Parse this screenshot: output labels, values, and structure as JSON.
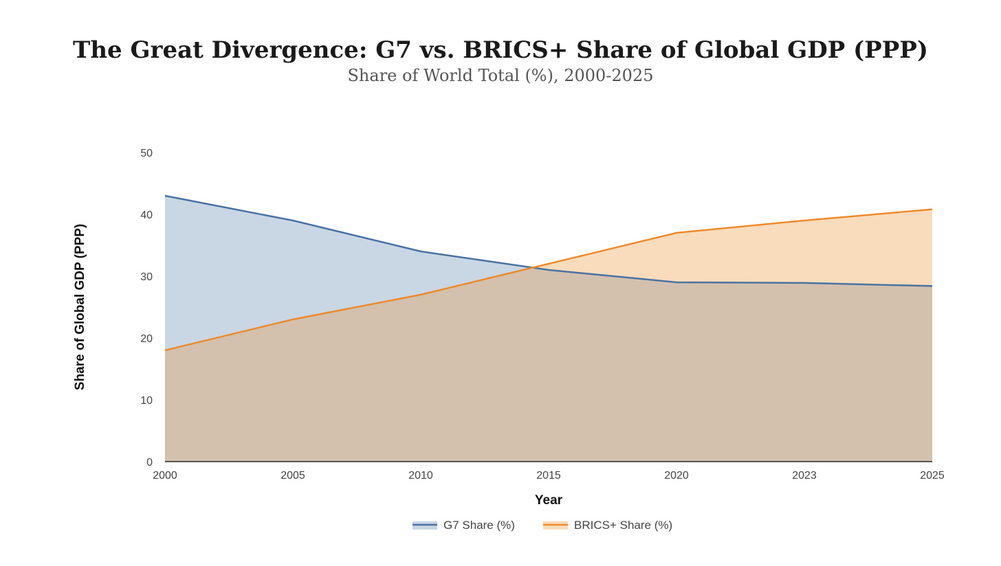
{
  "chart_data": {
    "type": "area",
    "title": "The Great Divergence: G7 vs. BRICS+ Share of Global GDP (PPP)",
    "subtitle": "Share of World Total (%), 2000-2025",
    "xlabel": "Year",
    "ylabel": "Share of Global GDP (PPP)",
    "categories": [
      "2000",
      "2005",
      "2010",
      "2015",
      "2020",
      "2023",
      "2025"
    ],
    "ylim": [
      0,
      50
    ],
    "yticks": [
      "0",
      "10",
      "20",
      "30",
      "40",
      "50"
    ],
    "grid": false,
    "legend_position": "bottom-center",
    "series": [
      {
        "name": "G7 Share (%)",
        "values": [
          43,
          39,
          34,
          31,
          29,
          28.9,
          28.4
        ],
        "line_color": "#4a72a3",
        "fill_color": "#c9d6e3"
      },
      {
        "name": "BRICS+ Share (%)",
        "values": [
          18,
          23,
          27,
          32,
          37,
          39,
          40.8
        ],
        "line_color": "#ee8a2a",
        "fill_color": "#f9dcbc"
      }
    ],
    "overlap_fill_color": "#d4c1ad"
  }
}
